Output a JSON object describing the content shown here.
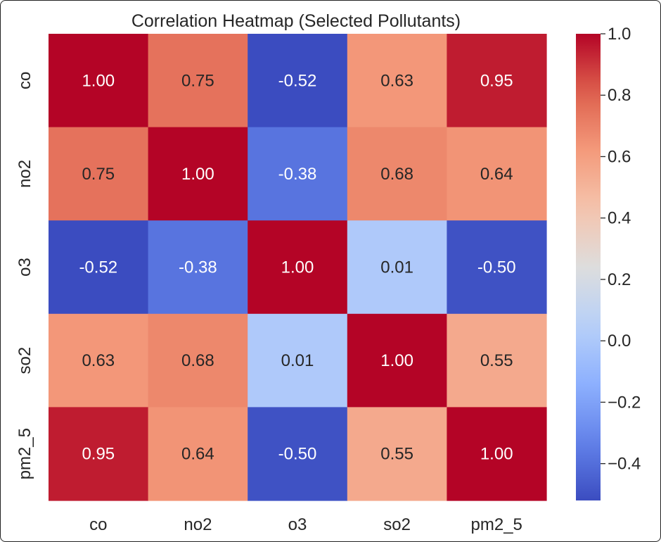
{
  "chart_data": {
    "type": "heatmap",
    "title": "Correlation Heatmap (Selected Pollutants)",
    "xlabel": "",
    "ylabel": "",
    "x_categories": [
      "co",
      "no2",
      "o3",
      "so2",
      "pm2_5"
    ],
    "y_categories": [
      "co",
      "no2",
      "o3",
      "so2",
      "pm2_5"
    ],
    "values": [
      [
        1.0,
        0.75,
        -0.52,
        0.63,
        0.95
      ],
      [
        0.75,
        1.0,
        -0.38,
        0.68,
        0.64
      ],
      [
        -0.52,
        -0.38,
        1.0,
        0.01,
        -0.5
      ],
      [
        0.63,
        0.68,
        0.01,
        1.0,
        0.55
      ],
      [
        0.95,
        0.64,
        -0.5,
        0.55,
        1.0
      ]
    ],
    "cell_labels": [
      [
        "1.00",
        "0.75",
        "-0.52",
        "0.63",
        "0.95"
      ],
      [
        "0.75",
        "1.00",
        "-0.38",
        "0.68",
        "0.64"
      ],
      [
        "-0.52",
        "-0.38",
        "1.00",
        "0.01",
        "-0.50"
      ],
      [
        "0.63",
        "0.68",
        "0.01",
        "1.00",
        "0.55"
      ],
      [
        "0.95",
        "0.64",
        "-0.50",
        "0.55",
        "1.00"
      ]
    ],
    "colormap": "coolwarm",
    "colorbar": {
      "range": [
        -0.52,
        1.0
      ],
      "ticks": [
        1.0,
        0.8,
        0.6,
        0.4,
        0.2,
        0.0,
        -0.2,
        -0.4
      ],
      "tick_labels": [
        "1.0",
        "0.8",
        "0.6",
        "0.4",
        "0.2",
        "0.0",
        "−0.2",
        "−0.4"
      ],
      "placement": "right"
    },
    "colors": {
      "low": "#3b4cc0",
      "mid": "#dddddd",
      "high": "#b40426",
      "text_dark": "#262626",
      "text_light": "#ffffff"
    }
  }
}
